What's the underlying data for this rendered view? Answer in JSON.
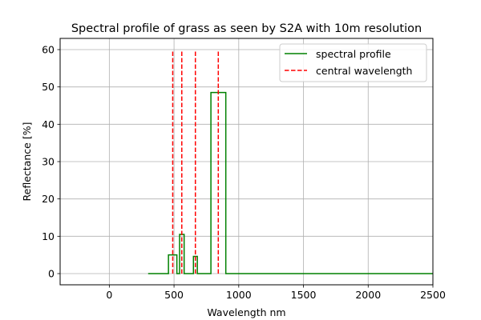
{
  "chart_data": {
    "type": "line",
    "title": "Spectral profile of grass as seen by S2A with 10m resolution",
    "xlabel": "Wavelength nm",
    "ylabel": "Reflectance [%]",
    "xlim": [
      -380,
      2500
    ],
    "ylim": [
      -3,
      63
    ],
    "xticks": [
      0,
      500,
      1000,
      1500,
      2000,
      2500
    ],
    "yticks": [
      0,
      10,
      20,
      30,
      40,
      50,
      60
    ],
    "grid": true,
    "legend_position": "top-right",
    "series": [
      {
        "name": "spectral profile",
        "style": "solid",
        "color": "#008000",
        "x": [
          300,
          457,
          457,
          522,
          522,
          543,
          543,
          578,
          578,
          650,
          650,
          680,
          680,
          785,
          785,
          900,
          900,
          2500
        ],
        "y": [
          0,
          0,
          5,
          5,
          0,
          0,
          10.5,
          10.5,
          0,
          0,
          4.6,
          4.6,
          0,
          0,
          48.5,
          48.5,
          0,
          0
        ]
      },
      {
        "name": "central wavelength",
        "style": "dashed",
        "color": "#ff0000",
        "x": [
          490,
          560,
          665,
          842
        ],
        "y_range": [
          0,
          60
        ]
      }
    ]
  }
}
